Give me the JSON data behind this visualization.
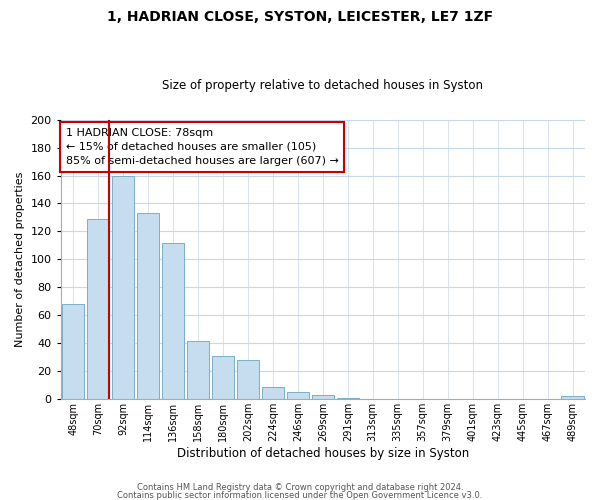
{
  "title": "1, HADRIAN CLOSE, SYSTON, LEICESTER, LE7 1ZF",
  "subtitle": "Size of property relative to detached houses in Syston",
  "xlabel": "Distribution of detached houses by size in Syston",
  "ylabel": "Number of detached properties",
  "bar_color": "#c5ddef",
  "bar_edge_color": "#7aafc8",
  "categories": [
    "48sqm",
    "70sqm",
    "92sqm",
    "114sqm",
    "136sqm",
    "158sqm",
    "180sqm",
    "202sqm",
    "224sqm",
    "246sqm",
    "269sqm",
    "291sqm",
    "313sqm",
    "335sqm",
    "357sqm",
    "379sqm",
    "401sqm",
    "423sqm",
    "445sqm",
    "467sqm",
    "489sqm"
  ],
  "values": [
    68,
    129,
    160,
    133,
    112,
    42,
    31,
    28,
    9,
    5,
    3,
    1,
    0,
    0,
    0,
    0,
    0,
    0,
    0,
    0,
    2
  ],
  "ylim": [
    0,
    200
  ],
  "yticks": [
    0,
    20,
    40,
    60,
    80,
    100,
    120,
    140,
    160,
    180,
    200
  ],
  "annotation_line1": "1 HADRIAN CLOSE: 78sqm",
  "annotation_line2": "← 15% of detached houses are smaller (105)",
  "annotation_line3": "85% of semi-detached houses are larger (607) →",
  "property_line_color": "#cc0000",
  "annotation_box_color": "#ffffff",
  "annotation_box_edge_color": "#cc0000",
  "footer_line1": "Contains HM Land Registry data © Crown copyright and database right 2024.",
  "footer_line2": "Contains public sector information licensed under the Open Government Licence v3.0.",
  "background_color": "#ffffff",
  "grid_color": "#c8d8e8"
}
